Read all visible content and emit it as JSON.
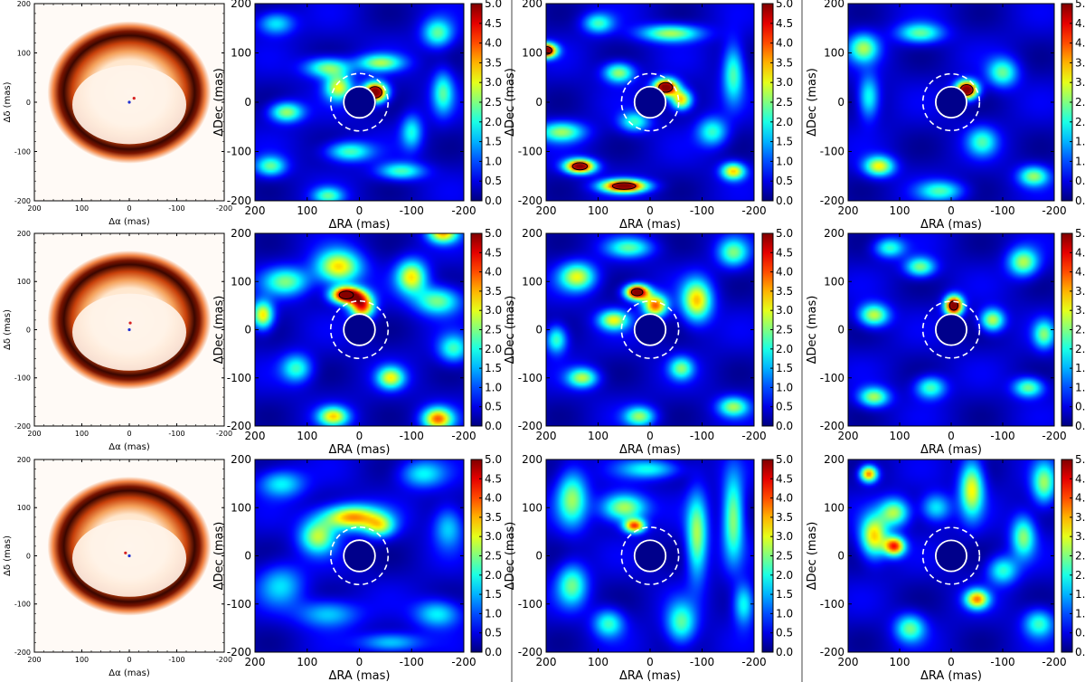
{
  "figure": {
    "model_panels": {
      "xlabel": "Δα (mas)",
      "ylabel": "Δδ (mas)",
      "x_ticks": [
        "200",
        "100",
        "0",
        "-100",
        "-200"
      ],
      "y_ticks": [
        "200",
        "100",
        "0",
        "-100",
        "-200"
      ]
    },
    "map_panels": {
      "xlabel": "ΔRA (mas)",
      "ylabel": "ΔDec (mas)",
      "x_ticks": [
        "200",
        "100",
        "0",
        "-100",
        "-200"
      ],
      "y_ticks": [
        "200",
        "100",
        "0",
        "-100",
        "-200"
      ],
      "colorbar_ticks": [
        "5.0",
        "4.5",
        "4.0",
        "3.5",
        "3.0",
        "2.5",
        "2.0",
        "1.5",
        "1.0",
        "0.5",
        "0.0"
      ]
    }
  },
  "chart_data": [
    {
      "type": "heatmap",
      "row": 1,
      "col": 1,
      "description_kind": "model",
      "xlabel": "Δα (mas)",
      "ylabel": "Δδ (mas)",
      "xlim": [
        200,
        -200
      ],
      "ylim": [
        -200,
        200
      ],
      "blobs": [],
      "markers": [
        {
          "x": -10,
          "y": 8,
          "color": "#d62020"
        },
        {
          "x": 0,
          "y": 0,
          "color": "#2030d0"
        }
      ],
      "colors": {
        "disk_dark": "#1a0000",
        "disk_mid": "#e8631a",
        "disk_light": "#fff6ee"
      }
    },
    {
      "type": "heatmap",
      "row": 1,
      "col": 2,
      "xlabel": "ΔRA (mas)",
      "ylabel": "ΔDec (mas)",
      "xlim": [
        200,
        -200
      ],
      "ylim": [
        -200,
        200
      ],
      "zlim": [
        0,
        5
      ],
      "blobs": [
        {
          "x": -30,
          "y": 20,
          "sx": 16,
          "sy": 14,
          "v": 5.2
        },
        {
          "x": 40,
          "y": 30,
          "sx": 18,
          "sy": 18,
          "v": 2.6
        },
        {
          "x": 140,
          "y": -20,
          "sx": 22,
          "sy": 14,
          "v": 2.4
        },
        {
          "x": 60,
          "y": 70,
          "sx": 30,
          "sy": 14,
          "v": 2.3
        },
        {
          "x": -40,
          "y": 80,
          "sx": 30,
          "sy": 12,
          "v": 2.2
        },
        {
          "x": -150,
          "y": 140,
          "sx": 20,
          "sy": 20,
          "v": 2.0
        },
        {
          "x": 20,
          "y": -100,
          "sx": 30,
          "sy": 14,
          "v": 2.0
        },
        {
          "x": -80,
          "y": -140,
          "sx": 30,
          "sy": 12,
          "v": 1.9
        },
        {
          "x": 170,
          "y": -130,
          "sx": 20,
          "sy": 14,
          "v": 2.0
        },
        {
          "x": -160,
          "y": 20,
          "sx": 14,
          "sy": 30,
          "v": 1.8
        },
        {
          "x": 60,
          "y": -190,
          "sx": 20,
          "sy": 12,
          "v": 1.8
        },
        {
          "x": 160,
          "y": 160,
          "sx": 24,
          "sy": 16,
          "v": 1.6
        },
        {
          "x": -100,
          "y": -60,
          "sx": 14,
          "sy": 24,
          "v": 1.6
        }
      ],
      "contours_at": 4.0,
      "inner_circle_radius_mas": 30,
      "outer_circle_radius_mas": 55
    },
    {
      "type": "heatmap",
      "row": 1,
      "col": 3,
      "xlabel": "ΔRA (mas)",
      "ylabel": "ΔDec (mas)",
      "xlim": [
        200,
        -200
      ],
      "ylim": [
        -200,
        200
      ],
      "zlim": [
        0,
        5
      ],
      "blobs": [
        {
          "x": -30,
          "y": 30,
          "sx": 16,
          "sy": 12,
          "v": 5.2
        },
        {
          "x": 200,
          "y": 105,
          "sx": 14,
          "sy": 10,
          "v": 5.1
        },
        {
          "x": 135,
          "y": -130,
          "sx": 20,
          "sy": 10,
          "v": 4.8
        },
        {
          "x": 50,
          "y": -170,
          "sx": 30,
          "sy": 9,
          "v": 4.9
        },
        {
          "x": -60,
          "y": 5,
          "sx": 14,
          "sy": 14,
          "v": 3.2
        },
        {
          "x": -160,
          "y": -140,
          "sx": 16,
          "sy": 12,
          "v": 3.0
        },
        {
          "x": 60,
          "y": 60,
          "sx": 20,
          "sy": 14,
          "v": 2.4
        },
        {
          "x": -40,
          "y": 140,
          "sx": 40,
          "sy": 12,
          "v": 2.4
        },
        {
          "x": 170,
          "y": -60,
          "sx": 30,
          "sy": 14,
          "v": 2.2
        },
        {
          "x": -160,
          "y": 60,
          "sx": 14,
          "sy": 40,
          "v": 2.0
        },
        {
          "x": 100,
          "y": 160,
          "sx": 20,
          "sy": 14,
          "v": 1.8
        },
        {
          "x": -120,
          "y": -60,
          "sx": 20,
          "sy": 20,
          "v": 1.8
        },
        {
          "x": 30,
          "y": -40,
          "sx": 20,
          "sy": 14,
          "v": 1.8
        }
      ],
      "contours_at": 4.0,
      "inner_circle_radius_mas": 30,
      "outer_circle_radius_mas": 55
    },
    {
      "type": "heatmap",
      "row": 1,
      "col": 4,
      "xlabel": "ΔRA (mas)",
      "ylabel": "ΔDec (mas)",
      "xlim": [
        200,
        -200
      ],
      "ylim": [
        -200,
        200
      ],
      "zlim": [
        0,
        5
      ],
      "blobs": [
        {
          "x": -30,
          "y": 25,
          "sx": 15,
          "sy": 13,
          "v": 5.2
        },
        {
          "x": 140,
          "y": -130,
          "sx": 20,
          "sy": 14,
          "v": 2.8
        },
        {
          "x": 170,
          "y": 110,
          "sx": 20,
          "sy": 20,
          "v": 2.2
        },
        {
          "x": -160,
          "y": -150,
          "sx": 20,
          "sy": 14,
          "v": 2.2
        },
        {
          "x": 60,
          "y": 140,
          "sx": 30,
          "sy": 14,
          "v": 2.0
        },
        {
          "x": -100,
          "y": 60,
          "sx": 20,
          "sy": 20,
          "v": 2.0
        },
        {
          "x": 20,
          "y": -180,
          "sx": 30,
          "sy": 14,
          "v": 1.8
        },
        {
          "x": 160,
          "y": 10,
          "sx": 14,
          "sy": 30,
          "v": 1.8
        },
        {
          "x": -60,
          "y": -80,
          "sx": 20,
          "sy": 20,
          "v": 1.7
        }
      ],
      "contours_at": 4.0,
      "inner_circle_radius_mas": 30,
      "outer_circle_radius_mas": 55
    },
    {
      "type": "heatmap",
      "row": 2,
      "col": 1,
      "description_kind": "model",
      "xlabel": "Δα (mas)",
      "ylabel": "Δδ (mas)",
      "xlim": [
        200,
        -200
      ],
      "ylim": [
        -200,
        200
      ],
      "blobs": [],
      "markers": [
        {
          "x": -2,
          "y": 14,
          "color": "#d62020"
        },
        {
          "x": 0,
          "y": 0,
          "color": "#2030d0"
        }
      ],
      "colors": {
        "disk_dark": "#1a0000",
        "disk_mid": "#e8631a",
        "disk_light": "#fff6ee"
      }
    },
    {
      "type": "heatmap",
      "row": 2,
      "col": 2,
      "xlabel": "ΔRA (mas)",
      "ylabel": "ΔDec (mas)",
      "xlim": [
        200,
        -200
      ],
      "ylim": [
        -200,
        200
      ],
      "zlim": [
        0,
        5
      ],
      "blobs": [
        {
          "x": 25,
          "y": 72,
          "sx": 20,
          "sy": 12,
          "v": 5.3
        },
        {
          "x": -5,
          "y": 50,
          "sx": 16,
          "sy": 18,
          "v": 4.0
        },
        {
          "x": 40,
          "y": 130,
          "sx": 30,
          "sy": 24,
          "v": 3.0
        },
        {
          "x": -100,
          "y": 110,
          "sx": 20,
          "sy": 24,
          "v": 2.8
        },
        {
          "x": -160,
          "y": 200,
          "sx": 20,
          "sy": 14,
          "v": 3.0
        },
        {
          "x": 185,
          "y": 30,
          "sx": 14,
          "sy": 20,
          "v": 3.0
        },
        {
          "x": -150,
          "y": -185,
          "sx": 20,
          "sy": 16,
          "v": 3.4
        },
        {
          "x": 50,
          "y": -180,
          "sx": 20,
          "sy": 14,
          "v": 2.8
        },
        {
          "x": -60,
          "y": -100,
          "sx": 18,
          "sy": 16,
          "v": 2.6
        },
        {
          "x": -150,
          "y": 60,
          "sx": 30,
          "sy": 20,
          "v": 2.2
        },
        {
          "x": 140,
          "y": 100,
          "sx": 30,
          "sy": 20,
          "v": 2.0
        },
        {
          "x": 120,
          "y": -80,
          "sx": 20,
          "sy": 20,
          "v": 1.8
        },
        {
          "x": -180,
          "y": -40,
          "sx": 20,
          "sy": 20,
          "v": 1.8
        }
      ],
      "contours_at": 4.5,
      "inner_circle_radius_mas": 30,
      "outer_circle_radius_mas": 55
    },
    {
      "type": "heatmap",
      "row": 2,
      "col": 3,
      "xlabel": "ΔRA (mas)",
      "ylabel": "ΔDec (mas)",
      "xlim": [
        200,
        -200
      ],
      "ylim": [
        -200,
        200
      ],
      "zlim": [
        0,
        5
      ],
      "blobs": [
        {
          "x": 25,
          "y": 78,
          "sx": 16,
          "sy": 11,
          "v": 5.3
        },
        {
          "x": -10,
          "y": 50,
          "sx": 16,
          "sy": 16,
          "v": 3.6
        },
        {
          "x": -90,
          "y": 60,
          "sx": 20,
          "sy": 30,
          "v": 3.0
        },
        {
          "x": 70,
          "y": 20,
          "sx": 20,
          "sy": 14,
          "v": 2.6
        },
        {
          "x": 140,
          "y": 110,
          "sx": 24,
          "sy": 20,
          "v": 2.6
        },
        {
          "x": 130,
          "y": -100,
          "sx": 20,
          "sy": 14,
          "v": 2.4
        },
        {
          "x": -160,
          "y": -160,
          "sx": 20,
          "sy": 14,
          "v": 2.2
        },
        {
          "x": 20,
          "y": -180,
          "sx": 20,
          "sy": 14,
          "v": 2.2
        },
        {
          "x": -160,
          "y": 160,
          "sx": 20,
          "sy": 20,
          "v": 2.0
        },
        {
          "x": 180,
          "y": -20,
          "sx": 14,
          "sy": 20,
          "v": 2.0
        },
        {
          "x": -60,
          "y": -80,
          "sx": 16,
          "sy": 16,
          "v": 2.0
        },
        {
          "x": 40,
          "y": 170,
          "sx": 30,
          "sy": 14,
          "v": 1.8
        }
      ],
      "contours_at": 4.5,
      "inner_circle_radius_mas": 30,
      "outer_circle_radius_mas": 55
    },
    {
      "type": "heatmap",
      "row": 2,
      "col": 4,
      "xlabel": "ΔRA (mas)",
      "ylabel": "ΔDec (mas)",
      "xlim": [
        200,
        -200
      ],
      "ylim": [
        -200,
        200
      ],
      "zlim": [
        0,
        5
      ],
      "blobs": [
        {
          "x": -5,
          "y": 50,
          "sx": 12,
          "sy": 14,
          "v": 5.3
        },
        {
          "x": 150,
          "y": 30,
          "sx": 20,
          "sy": 16,
          "v": 2.6
        },
        {
          "x": -80,
          "y": 20,
          "sx": 16,
          "sy": 16,
          "v": 2.6
        },
        {
          "x": 150,
          "y": -140,
          "sx": 20,
          "sy": 14,
          "v": 2.4
        },
        {
          "x": -140,
          "y": 140,
          "sx": 20,
          "sy": 20,
          "v": 2.4
        },
        {
          "x": 60,
          "y": 130,
          "sx": 20,
          "sy": 14,
          "v": 2.2
        },
        {
          "x": -150,
          "y": -120,
          "sx": 20,
          "sy": 14,
          "v": 2.2
        },
        {
          "x": 40,
          "y": -120,
          "sx": 20,
          "sy": 16,
          "v": 2.0
        },
        {
          "x": -180,
          "y": -10,
          "sx": 14,
          "sy": 20,
          "v": 2.0
        },
        {
          "x": 120,
          "y": 170,
          "sx": 20,
          "sy": 14,
          "v": 1.8
        }
      ],
      "contours_at": 4.5,
      "inner_circle_radius_mas": 30,
      "outer_circle_radius_mas": 55
    },
    {
      "type": "heatmap",
      "row": 3,
      "col": 1,
      "description_kind": "model",
      "xlabel": "Δα (mas)",
      "ylabel": "Δδ (mas)",
      "xlim": [
        200,
        -200
      ],
      "ylim": [
        -200,
        200
      ],
      "blobs": [],
      "markers": [
        {
          "x": 8,
          "y": 6,
          "color": "#d62020"
        },
        {
          "x": 0,
          "y": 0,
          "color": "#2030d0"
        }
      ],
      "colors": {
        "disk_dark": "#1a0000",
        "disk_mid": "#e8631a",
        "disk_light": "#fff6ee"
      }
    },
    {
      "type": "heatmap",
      "row": 3,
      "col": 2,
      "xlabel": "ΔRA (mas)",
      "ylabel": "ΔDec (mas)",
      "xlim": [
        200,
        -200
      ],
      "ylim": [
        -200,
        200
      ],
      "zlim": [
        0,
        5
      ],
      "blobs": [
        {
          "x": 15,
          "y": 80,
          "sx": 40,
          "sy": 18,
          "v": 3.4
        },
        {
          "x": 80,
          "y": 40,
          "sx": 24,
          "sy": 24,
          "v": 2.4
        },
        {
          "x": -40,
          "y": 60,
          "sx": 20,
          "sy": 16,
          "v": 2.0
        },
        {
          "x": 150,
          "y": 150,
          "sx": 30,
          "sy": 20,
          "v": 1.6
        },
        {
          "x": -150,
          "y": -120,
          "sx": 30,
          "sy": 20,
          "v": 1.6
        },
        {
          "x": 60,
          "y": -120,
          "sx": 40,
          "sy": 20,
          "v": 1.4
        },
        {
          "x": -120,
          "y": 170,
          "sx": 30,
          "sy": 20,
          "v": 1.5
        },
        {
          "x": 150,
          "y": -60,
          "sx": 30,
          "sy": 30,
          "v": 1.3
        },
        {
          "x": -60,
          "y": -180,
          "sx": 40,
          "sy": 14,
          "v": 1.5
        },
        {
          "x": -170,
          "y": 60,
          "sx": 20,
          "sy": 30,
          "v": 1.4
        }
      ],
      "contours_at": null,
      "inner_circle_radius_mas": 30,
      "outer_circle_radius_mas": 55
    },
    {
      "type": "heatmap",
      "row": 3,
      "col": 3,
      "xlabel": "ΔRA (mas)",
      "ylabel": "ΔDec (mas)",
      "xlim": [
        200,
        -200
      ],
      "ylim": [
        -200,
        200
      ],
      "zlim": [
        0,
        5
      ],
      "blobs": [
        {
          "x": 30,
          "y": 62,
          "sx": 14,
          "sy": 10,
          "v": 3.6
        },
        {
          "x": 50,
          "y": 100,
          "sx": 30,
          "sy": 20,
          "v": 2.6
        },
        {
          "x": -90,
          "y": 40,
          "sx": 14,
          "sy": 60,
          "v": 2.4
        },
        {
          "x": -160,
          "y": 80,
          "sx": 14,
          "sy": 60,
          "v": 2.4
        },
        {
          "x": 150,
          "y": 120,
          "sx": 20,
          "sy": 40,
          "v": 2.2
        },
        {
          "x": 150,
          "y": -60,
          "sx": 20,
          "sy": 30,
          "v": 2.0
        },
        {
          "x": -60,
          "y": -140,
          "sx": 20,
          "sy": 30,
          "v": 2.0
        },
        {
          "x": 80,
          "y": -140,
          "sx": 20,
          "sy": 20,
          "v": 1.8
        },
        {
          "x": -180,
          "y": -100,
          "sx": 14,
          "sy": 30,
          "v": 1.8
        },
        {
          "x": 0,
          "y": 180,
          "sx": 40,
          "sy": 14,
          "v": 1.6
        }
      ],
      "contours_at": null,
      "inner_circle_radius_mas": 30,
      "outer_circle_radius_mas": 55
    },
    {
      "type": "heatmap",
      "row": 3,
      "col": 4,
      "xlabel": "ΔRA (mas)",
      "ylabel": "ΔDec (mas)",
      "xlim": [
        200,
        -200
      ],
      "ylim": [
        -200,
        200
      ],
      "zlim": [
        0,
        5
      ],
      "blobs": [
        {
          "x": 110,
          "y": 20,
          "sx": 14,
          "sy": 14,
          "v": 3.8
        },
        {
          "x": 160,
          "y": 170,
          "sx": 12,
          "sy": 12,
          "v": 3.6
        },
        {
          "x": 150,
          "y": 40,
          "sx": 18,
          "sy": 30,
          "v": 3.0
        },
        {
          "x": -50,
          "y": -90,
          "sx": 16,
          "sy": 14,
          "v": 3.2
        },
        {
          "x": -40,
          "y": 140,
          "sx": 16,
          "sy": 40,
          "v": 2.8
        },
        {
          "x": 110,
          "y": 90,
          "sx": 20,
          "sy": 20,
          "v": 2.4
        },
        {
          "x": -140,
          "y": 40,
          "sx": 16,
          "sy": 30,
          "v": 2.2
        },
        {
          "x": -180,
          "y": 150,
          "sx": 16,
          "sy": 30,
          "v": 2.2
        },
        {
          "x": 80,
          "y": -150,
          "sx": 20,
          "sy": 20,
          "v": 2.0
        },
        {
          "x": -100,
          "y": -30,
          "sx": 20,
          "sy": 20,
          "v": 1.8
        },
        {
          "x": -170,
          "y": -140,
          "sx": 20,
          "sy": 20,
          "v": 1.8
        },
        {
          "x": 30,
          "y": 100,
          "sx": 20,
          "sy": 20,
          "v": 1.6
        }
      ],
      "contours_at": null,
      "inner_circle_radius_mas": 30,
      "outer_circle_radius_mas": 55
    }
  ]
}
